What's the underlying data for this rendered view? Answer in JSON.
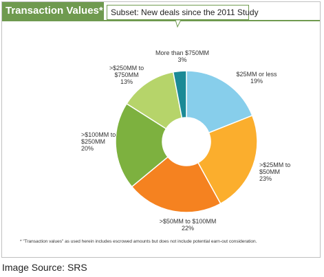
{
  "header": {
    "title": "Transaction Values*",
    "subtitle": "Subset: New deals since the 2011 Study"
  },
  "chart_data": {
    "type": "pie",
    "donut": true,
    "slices": [
      {
        "label_lines": [
          "$25MM or less",
          "19%"
        ],
        "value": 19,
        "color": "#87ceeb"
      },
      {
        "label_lines": [
          ">$25MM to",
          "$50MM",
          "23%"
        ],
        "value": 23,
        "color": "#fbae2d"
      },
      {
        "label_lines": [
          ">$50MM to $100MM",
          "22%"
        ],
        "value": 22,
        "color": "#f58220"
      },
      {
        "label_lines": [
          ">$100MM to",
          "$250MM",
          "20%"
        ],
        "value": 20,
        "color": "#7db13f"
      },
      {
        "label_lines": [
          ">$250MM to",
          "$750MM",
          "13%"
        ],
        "value": 13,
        "color": "#b6d46a"
      },
      {
        "label_lines": [
          "More than $750MM",
          "3%"
        ],
        "value": 3,
        "color": "#1b8a96"
      }
    ]
  },
  "footnote": "* \"Transaction values\" as used herein includes escrowed amounts but does not include potential earn-out consideration.",
  "source": "Image Source: SRS"
}
